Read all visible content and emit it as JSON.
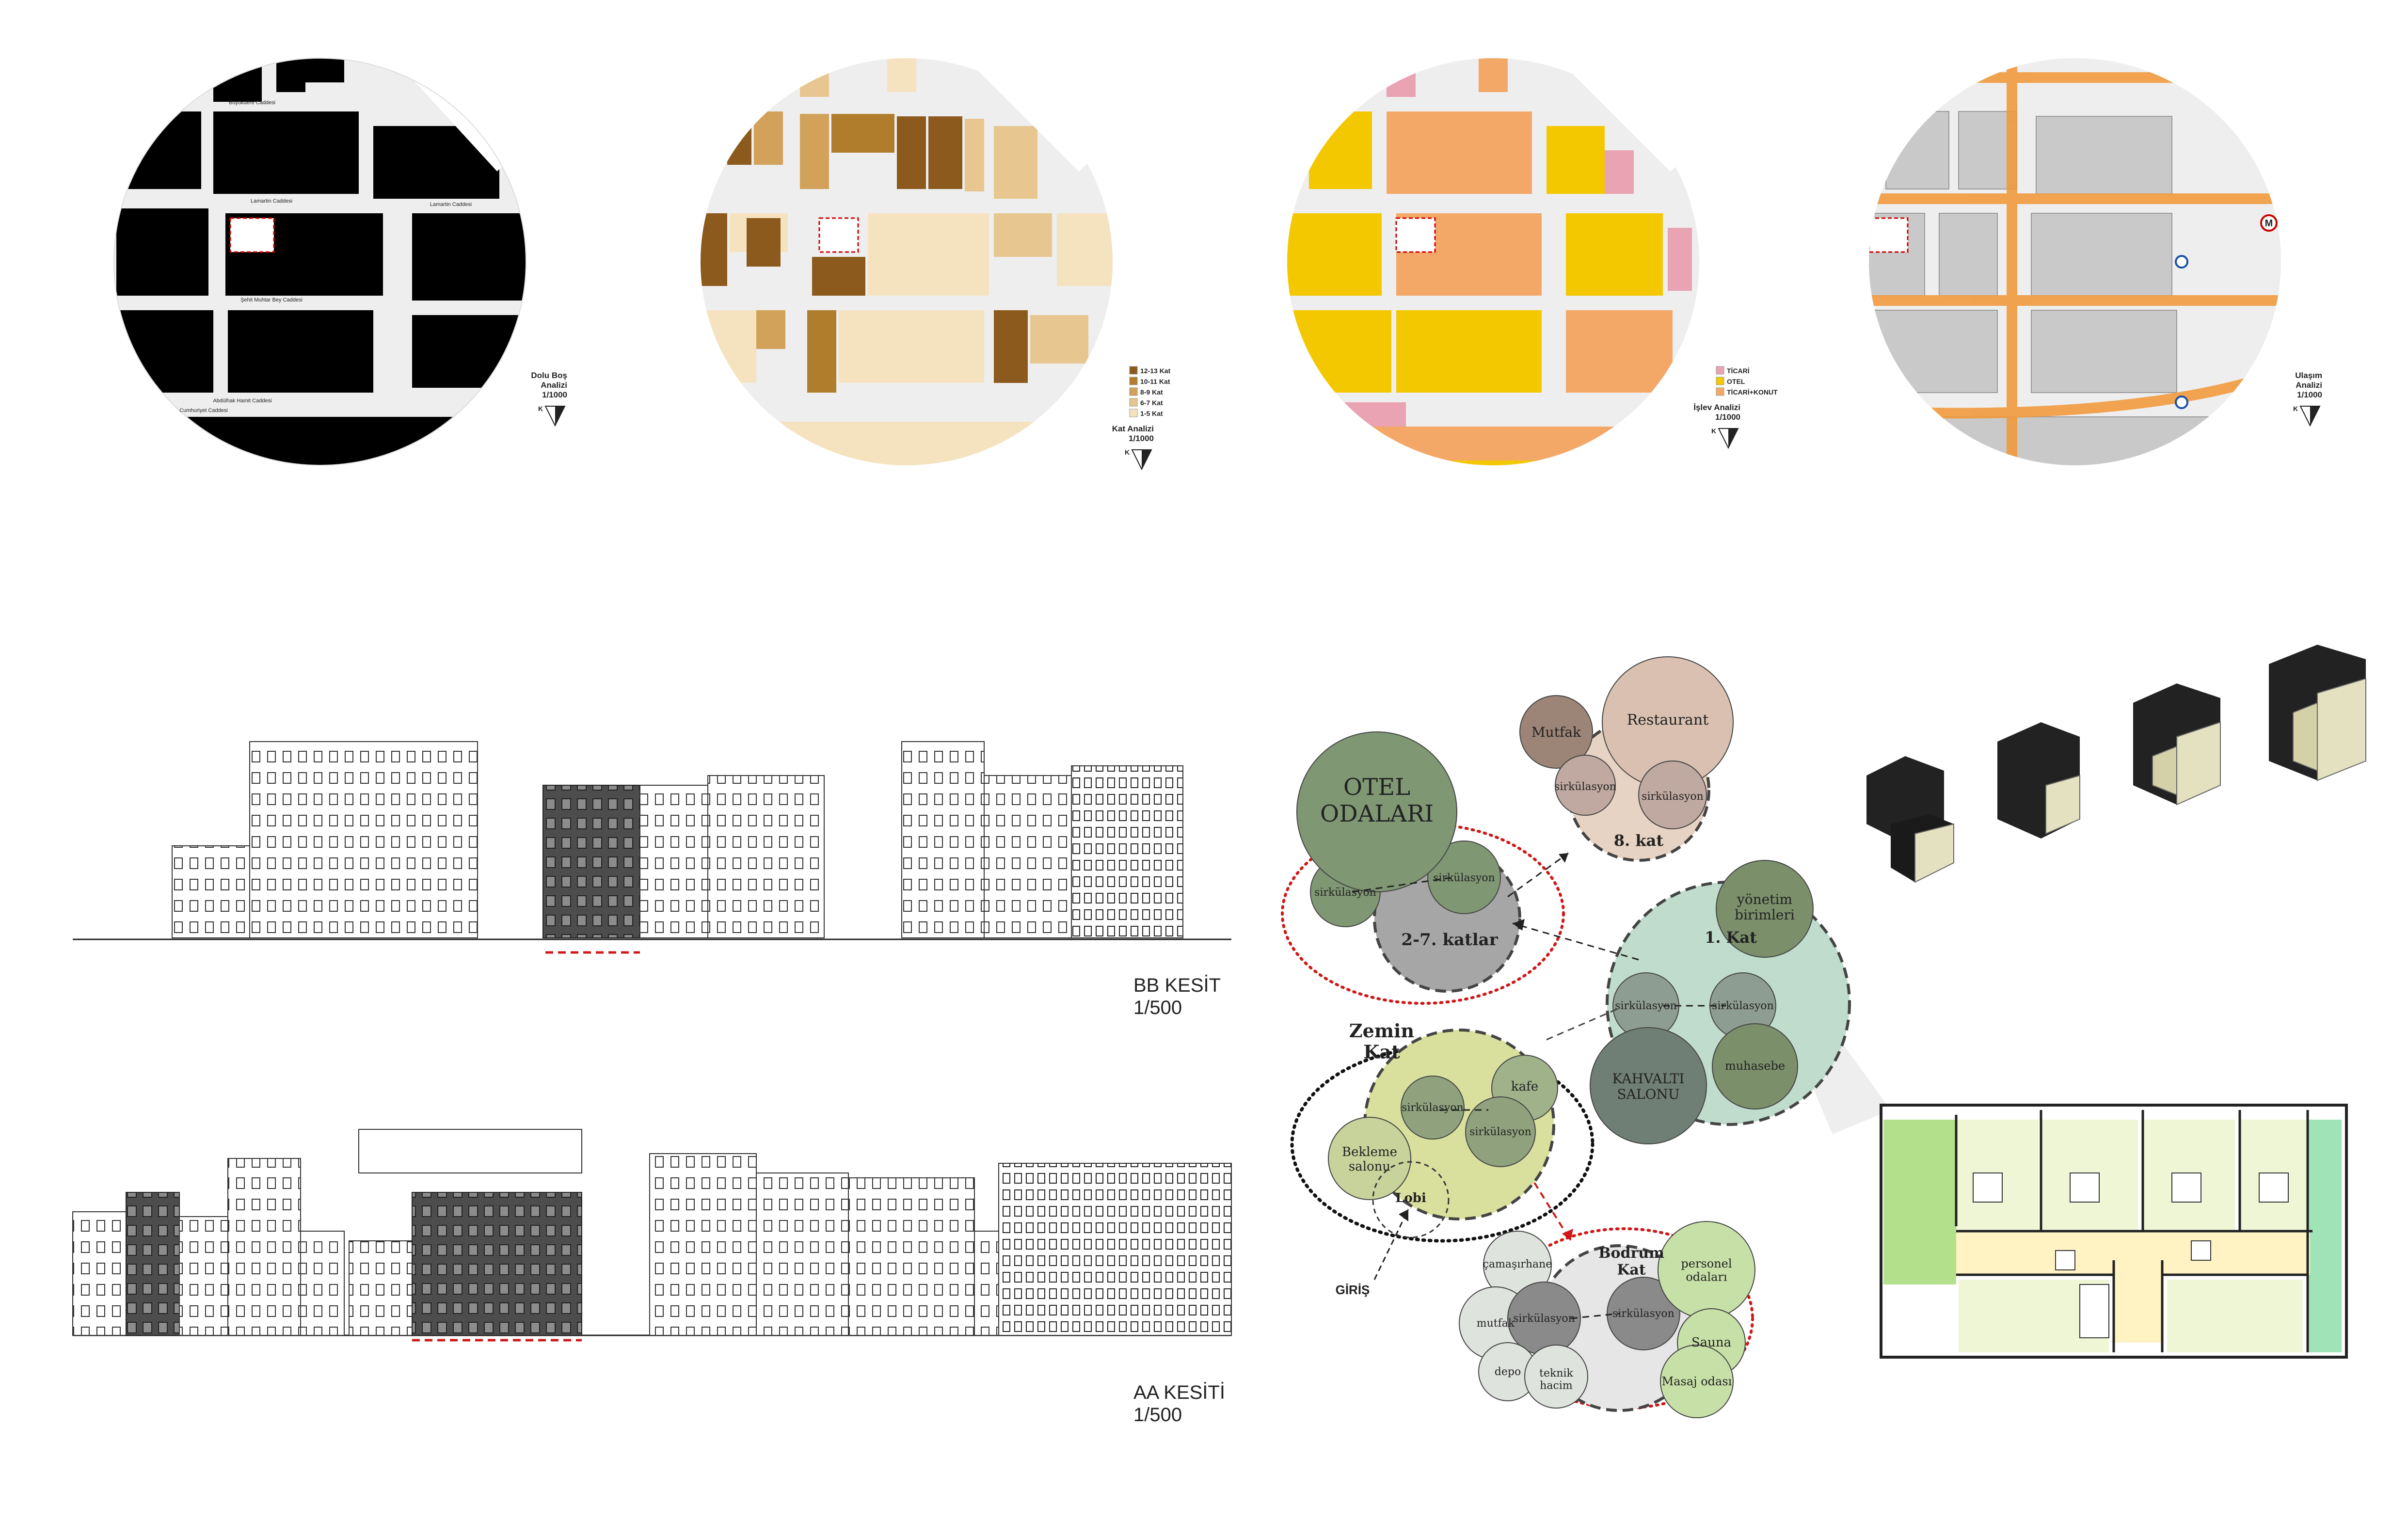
{
  "maps": [
    {
      "id": "dolu-bos",
      "legend": [],
      "title_lines": [
        "Dolu Boş",
        "Analizi",
        "1/1000"
      ],
      "north": "K",
      "fill": "#000000",
      "street_labels": [
        "Büyükdere Caddesi",
        "Lamartin Caddesi",
        "Lamartin Caddesi",
        "Şehit Muhtar Bey Caddesi",
        "Abdülhak Hamit Caddesi",
        "Cumhuriyet Caddesi"
      ]
    },
    {
      "id": "kat",
      "legend": [
        {
          "label": "12-13 Kat",
          "color": "#8b5a1c"
        },
        {
          "label": "10-11 Kat",
          "color": "#b07d2c"
        },
        {
          "label": "8-9 Kat",
          "color": "#d2a15a"
        },
        {
          "label": "6-7 Kat",
          "color": "#e7c78f"
        },
        {
          "label": "1-5 Kat",
          "color": "#f5e3c0"
        }
      ],
      "title_lines": [
        "Kat Analizi",
        "1/1000"
      ],
      "north": "K"
    },
    {
      "id": "islev",
      "legend": [
        {
          "label": "TİCARİ",
          "color": "#e9a3b3"
        },
        {
          "label": "OTEL",
          "color": "#f3c800"
        },
        {
          "label": "TİCARİ+KONUT",
          "color": "#f4a868"
        }
      ],
      "title_lines": [
        "İşlev Analizi",
        "1/1000"
      ],
      "north": "K"
    },
    {
      "id": "ulasim",
      "legend": [],
      "title_lines": [
        "Ulaşım",
        "Analizi",
        "1/1000"
      ],
      "north": "K",
      "metro_symbol": "M"
    }
  ],
  "sections": [
    {
      "id": "bb",
      "title": "BB KESİT",
      "scale": "1/500"
    },
    {
      "id": "aa",
      "title": "AA KESİTİ",
      "scale": "1/500"
    }
  ],
  "bubbles": {
    "otel_odalari": "OTEL\nODALARI",
    "katlar_2_7": "2-7. katlar",
    "kat_8": "8. kat",
    "mutfak": "Mutfak",
    "restaurant": "Restaurant",
    "sirkulasyon": "sirkülasyon",
    "kat_1": "1. Kat",
    "yonetim": "yönetim\nbirimleri",
    "kahvalti": "KAHVALTI\nSALONU",
    "muhasebe": "muhasebe",
    "zemin_kat": "Zemin\nKat",
    "kafe": "kafe",
    "bekleme": "Bekleme\nsalonu",
    "lobi": "Lobi",
    "giris": "GİRİŞ",
    "bodrum_kat": "Bodrum\nKat",
    "camasirhane": "çamaşırhane",
    "personel": "personel\nodaları",
    "sauna": "Sauna",
    "mutfak_b": "mutfak",
    "depo": "depo",
    "teknik": "teknik\nhacim",
    "masaj": "Masaj odası"
  },
  "colors": {
    "green_dark": "#7a8f6a",
    "green_mid": "#9fb28a",
    "otel": "#7f9773",
    "brown_light": "#d9c0b0",
    "mint": "#bfdccd",
    "yellow_green": "#d9df9d",
    "light_green": "#c7e0a7",
    "grey_light": "#dfe3de",
    "grey_dark": "#8a8a8a",
    "orange": "#f19a3e"
  }
}
